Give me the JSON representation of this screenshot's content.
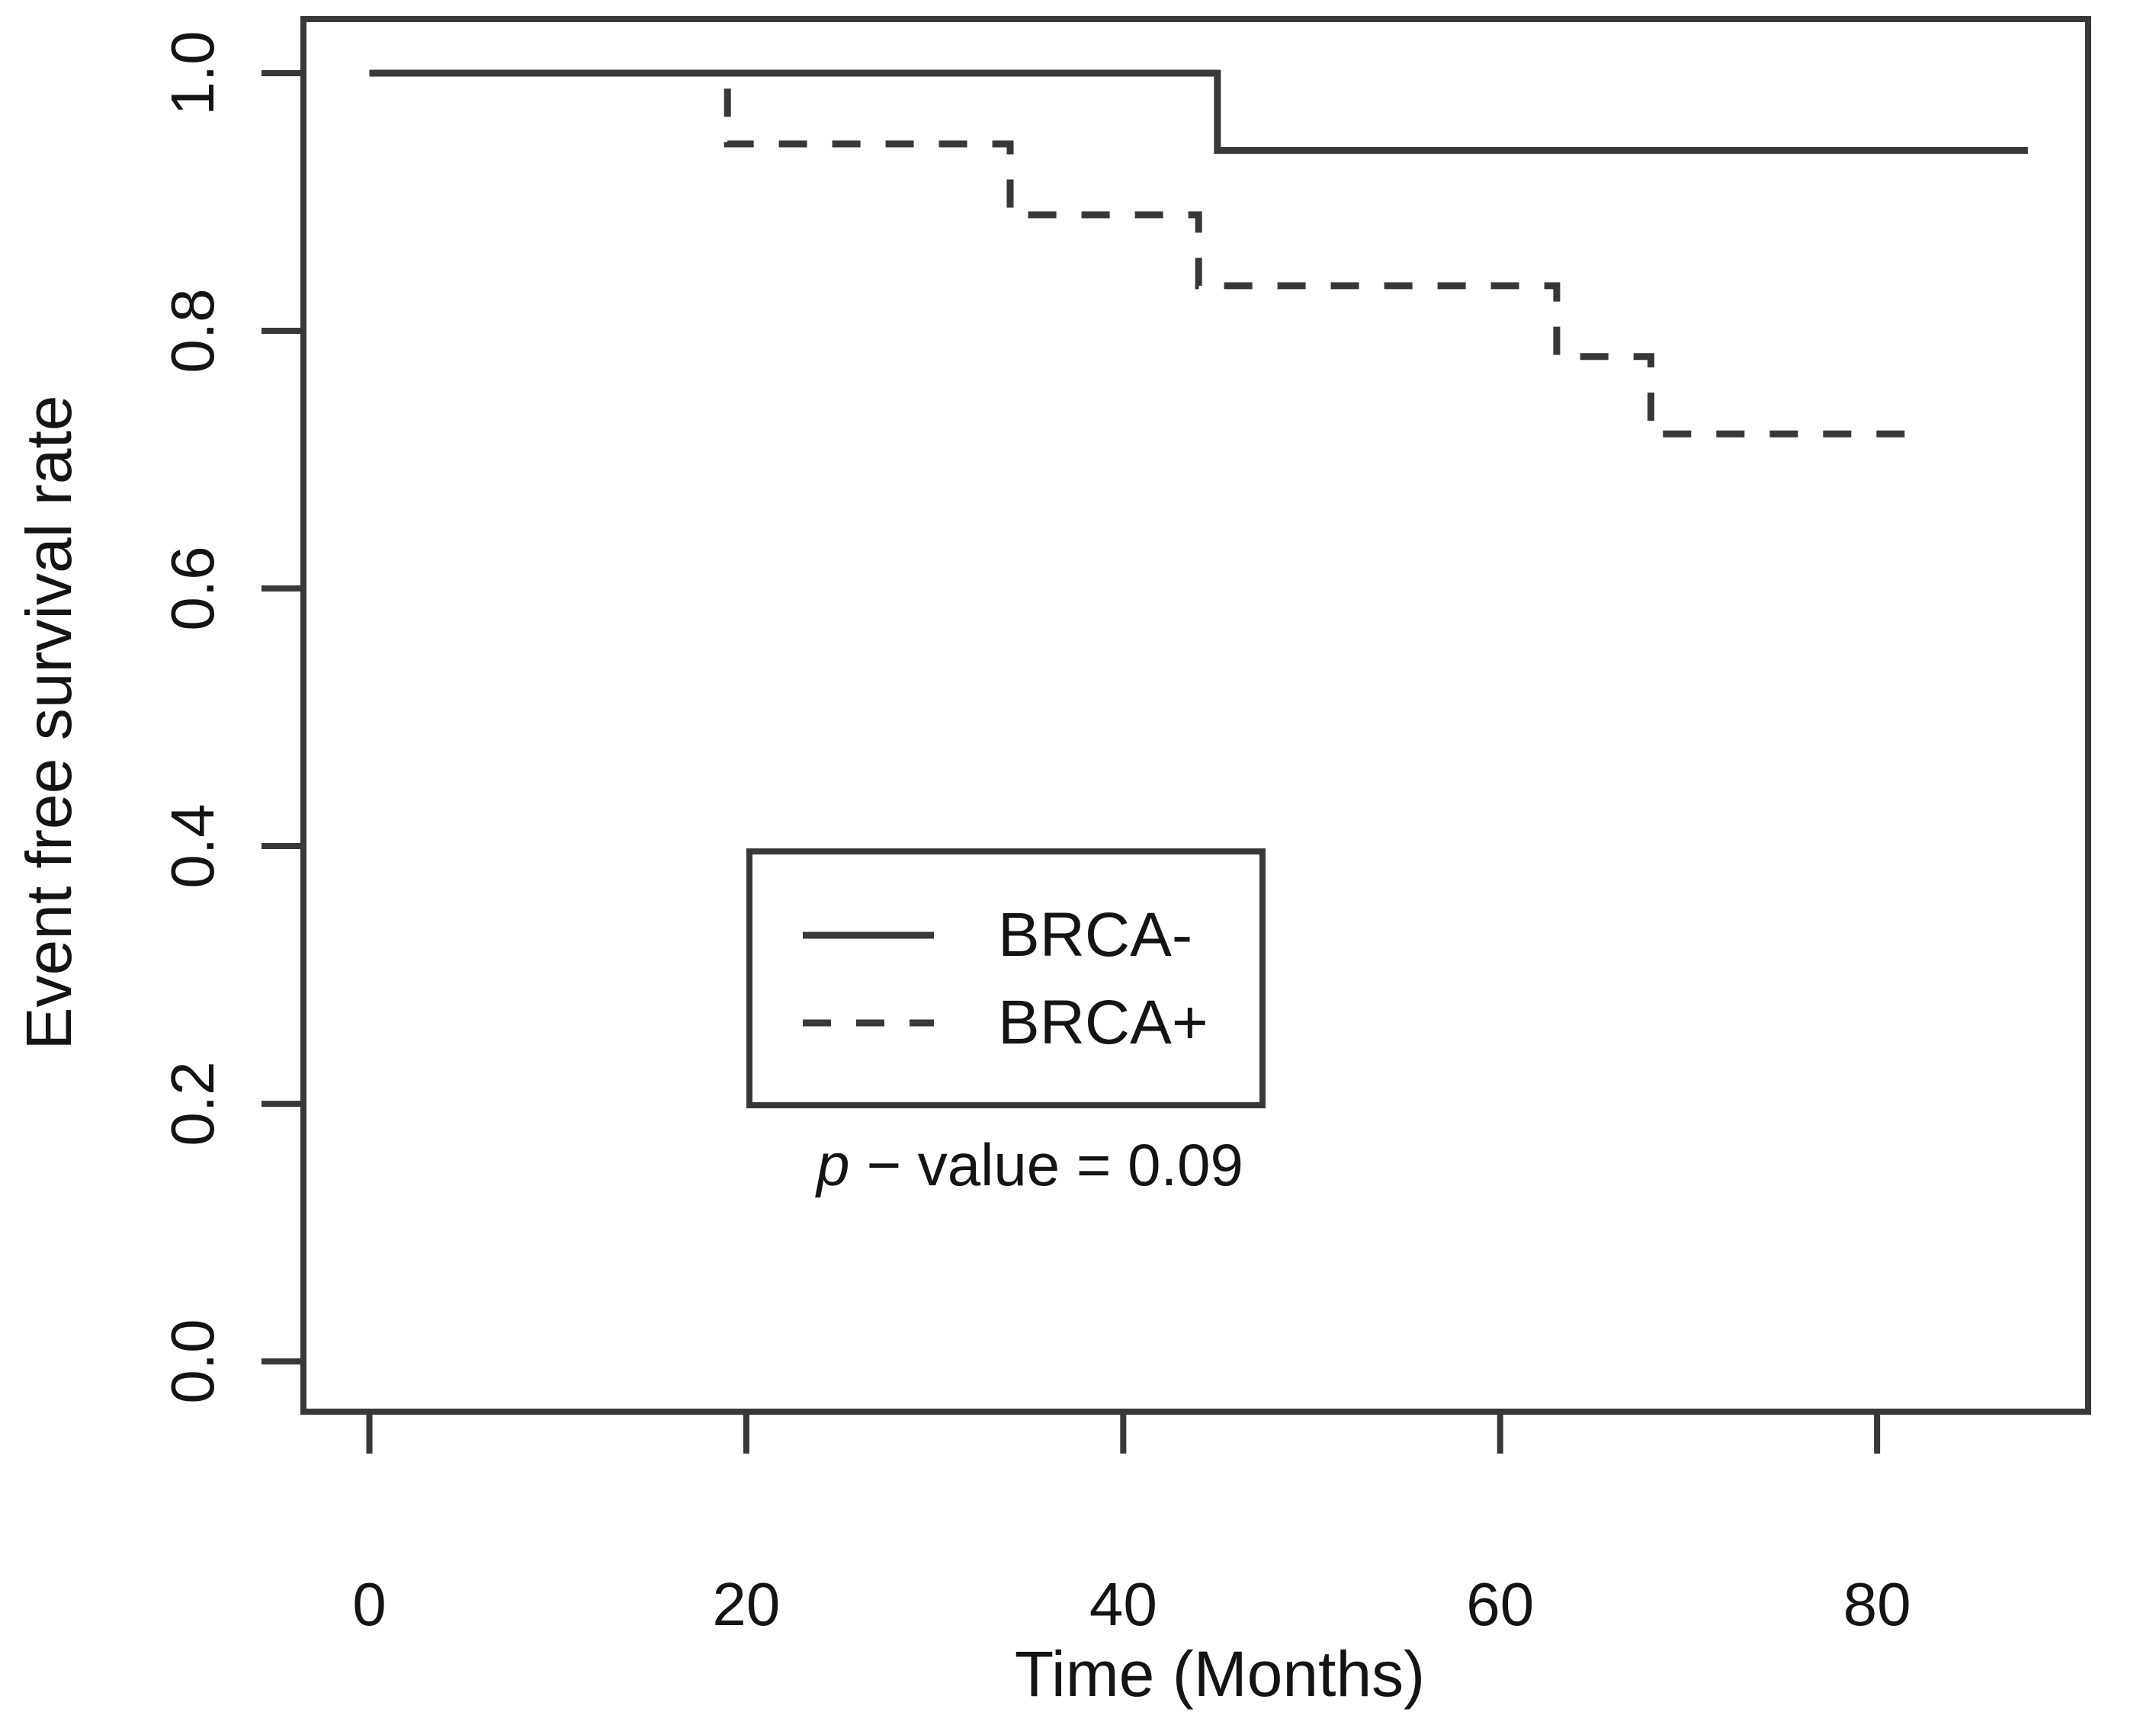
{
  "figure": {
    "background_color": "#ffffff",
    "text_color": "#141414",
    "line_color": "#383838"
  },
  "chart_data": {
    "type": "line",
    "subtype": "kaplan-meier-step",
    "title": "",
    "xlabel": "Time (Months)",
    "ylabel": "Event free survival rate",
    "x_ticks": [
      0,
      20,
      40,
      60,
      80
    ],
    "x_tick_labels": [
      "0",
      "20",
      "40",
      "60",
      "80"
    ],
    "y_ticks": [
      0.0,
      0.2,
      0.4,
      0.6,
      0.8,
      1.0
    ],
    "y_tick_labels": [
      "0.0",
      "0.2",
      "0.4",
      "0.6",
      "0.8",
      "1.0"
    ],
    "xlim": [
      -3.5,
      91.2
    ],
    "ylim": [
      -0.039,
      1.042
    ],
    "grid": false,
    "legend_position": "inside-bottom-center",
    "series": [
      {
        "name": "BRCA-",
        "line_style": "solid",
        "step_x": [
          0,
          45,
          88
        ],
        "step_y": [
          1.0,
          0.94,
          0.94
        ]
      },
      {
        "name": "BRCA+",
        "line_style": "dashed",
        "step_x": [
          0,
          19,
          34,
          44,
          63,
          68,
          82
        ],
        "step_y": [
          1.0,
          0.945,
          0.89,
          0.835,
          0.78,
          0.72,
          0.72
        ]
      }
    ],
    "annotation": {
      "p_symbol": "p",
      "rest": "− value = 0.09"
    }
  }
}
